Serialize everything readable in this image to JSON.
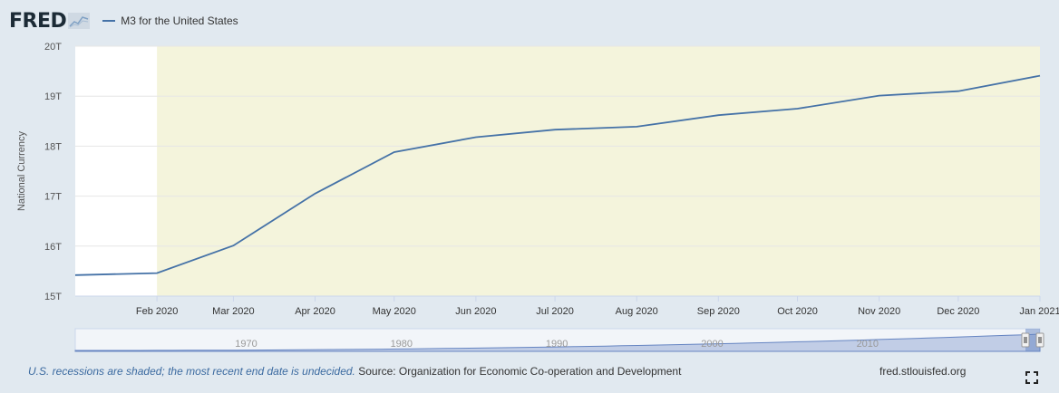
{
  "header": {
    "logo": "FRED",
    "logo_icon": "fred-chart-icon",
    "legend_label": "M3 for the United States"
  },
  "colors": {
    "series": "#4572a7",
    "recession": "#f4f4dc",
    "plot_bg": "#ffffff",
    "page_bg": "#e1e9f0",
    "navigator_fill": "#6685c2"
  },
  "chart_data": {
    "type": "line",
    "title": "M3 for the United States",
    "ylabel": "National Currency",
    "xlabel": "",
    "x_range": [
      "2020-01-01",
      "2021-01-01"
    ],
    "ylim": [
      15,
      20
    ],
    "y_tick_labels": [
      "15T",
      "16T",
      "17T",
      "18T",
      "19T",
      "20T"
    ],
    "x_tick_labels": [
      "Feb 2020",
      "Mar 2020",
      "Apr 2020",
      "May 2020",
      "Jun 2020",
      "Jul 2020",
      "Aug 2020",
      "Sep 2020",
      "Oct 2020",
      "Nov 2020",
      "Dec 2020",
      "Jan 2021"
    ],
    "grid": true,
    "series": [
      {
        "name": "M3 for the United States",
        "x": [
          "2020-01-01",
          "2020-02-01",
          "2020-03-01",
          "2020-04-01",
          "2020-05-01",
          "2020-06-01",
          "2020-07-01",
          "2020-08-01",
          "2020-09-01",
          "2020-10-01",
          "2020-11-01",
          "2020-12-01",
          "2021-01-01"
        ],
        "values": [
          15.42,
          15.46,
          16.01,
          17.05,
          17.88,
          18.18,
          18.33,
          18.39,
          18.62,
          18.75,
          19.01,
          19.1,
          19.41
        ]
      }
    ],
    "recession_shading": [
      {
        "start": "2020-02-01",
        "end": "2021-01-01"
      }
    ],
    "navigator": {
      "year_labels": [
        "1970",
        "1980",
        "1990",
        "2000",
        "2010"
      ]
    }
  },
  "footer": {
    "recession_note": "U.S. recessions are shaded; the most recent end date is undecided.",
    "source": "Source: Organization for Economic Co-operation and Development",
    "site": "fred.stlouisfed.org",
    "fullscreen_icon": "fullscreen-icon"
  }
}
